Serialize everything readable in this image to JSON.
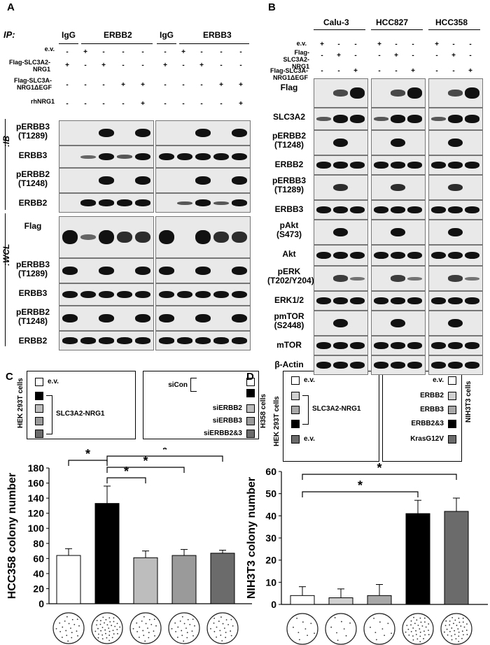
{
  "panel_a": {
    "label": "A",
    "ip_label": "IP:",
    "ip_groups": [
      "IgG",
      "ERBB2",
      "IgG",
      "ERBB3"
    ],
    "conditions": [
      "e.v.",
      "Flag-SLC3A2-NRG1",
      "Flag-SLC3A-NRG1ΔEGF",
      "rhNRG1"
    ],
    "signs": [
      [
        "-",
        "+",
        "-",
        "-",
        "-",
        "-",
        "+",
        "-",
        "-",
        "-"
      ],
      [
        "+",
        "-",
        "+",
        "-",
        "-",
        "+",
        "-",
        "+",
        "-",
        "-"
      ],
      [
        "-",
        "-",
        "-",
        "+",
        "+",
        "-",
        "-",
        "-",
        "+",
        "+"
      ],
      [
        "-",
        "-",
        "-",
        "-",
        "+",
        "-",
        "-",
        "-",
        "-",
        "+"
      ]
    ],
    "ib_label": ":IB",
    "wcl_label": ":WCL",
    "ib_rows": [
      "pERBB3 (T1289)",
      "ERBB3",
      "pERBB2 (T1248)",
      "ERBB2"
    ],
    "wcl_rows": [
      "Flag",
      "pERBB3 (T1289)",
      "ERBB3",
      "pERBB2 (T1248)",
      "ERBB2"
    ]
  },
  "panel_b": {
    "label": "B",
    "cell_lines": [
      "Calu-3",
      "HCC827",
      "HCC358"
    ],
    "conditions": [
      "e.v.",
      "Flag-SLC3A2-NRG1",
      "Flag-SLC3A-NRG1ΔEGF"
    ],
    "signs": [
      [
        "+",
        "-",
        "-"
      ],
      [
        "-",
        "+",
        "-"
      ],
      [
        "-",
        "-",
        "+"
      ]
    ],
    "rows": [
      "Flag",
      "SLC3A2",
      "pERBB2 (T1248)",
      "ERBB2",
      "pERBB3 (T1289)",
      "ERBB3",
      "pAkt (S473)",
      "Akt",
      "pERK (T202/Y204)",
      "ERK1/2",
      "pmTOR (S2448)",
      "mTOR",
      "β-Actin"
    ]
  },
  "panel_c": {
    "label": "C",
    "legend_left_title": "HEK 293T cells",
    "legend_left_items": [
      "e.v.",
      "SLC3A2-NRG1"
    ],
    "legend_right_title": "H358 cells",
    "legend_right_items": [
      "siCon",
      "siERBB2",
      "siERBB3",
      "siERBB2&3"
    ],
    "sig_marker": "*",
    "colors": [
      "#ffffff",
      "#000000",
      "#bdbdbd",
      "#9a9a9a",
      "#6b6b6b"
    ]
  },
  "panel_d": {
    "label": "D",
    "legend_left_title": "HEK 293T cells",
    "legend_left_items": [
      "e.v.",
      "SLC3A2-NRG1",
      "e.v."
    ],
    "legend_right_title": "NIH3T3 cells",
    "legend_right_items": [
      "e.v.",
      "ERBB2",
      "ERBB3",
      "ERBB2&3",
      "KrasG12V"
    ],
    "sig_marker": "*",
    "colors": [
      "#ffffff",
      "#d0d0d0",
      "#a8a8a8",
      "#000000",
      "#6b6b6b"
    ]
  },
  "chart_data": [
    {
      "type": "bar",
      "ylabel": "HCC358 colony number",
      "ylim": [
        0,
        180
      ],
      "yticks": [
        0,
        20,
        40,
        60,
        80,
        100,
        120,
        140,
        160,
        180
      ],
      "values": [
        64,
        133,
        61,
        64,
        67
      ],
      "errors": [
        9,
        23,
        9,
        8,
        4
      ],
      "grid": false
    },
    {
      "type": "bar",
      "ylabel": "NIH3T3 colony number",
      "ylim": [
        0,
        60
      ],
      "yticks": [
        0,
        10,
        20,
        30,
        40,
        50,
        60
      ],
      "values": [
        4,
        3,
        4,
        41,
        42
      ],
      "errors": [
        4,
        4,
        5,
        6,
        6
      ],
      "grid": false
    }
  ]
}
